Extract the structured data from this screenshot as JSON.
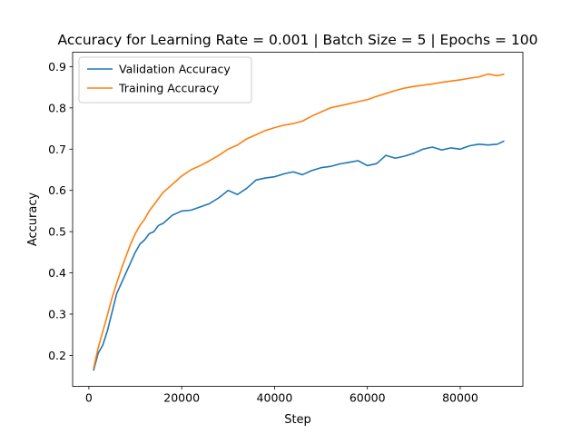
{
  "chart_data": {
    "type": "line",
    "title": "Accuracy for Learning Rate = 0.001 | Batch Size = 5 | Epochs = 100",
    "xlabel": "Step",
    "ylabel": "Accuracy",
    "xlim": [
      -3500,
      93500
    ],
    "ylim": [
      0.125,
      0.935
    ],
    "xticks": [
      0,
      20000,
      40000,
      60000,
      80000
    ],
    "yticks": [
      0.2,
      0.3,
      0.4,
      0.5,
      0.6,
      0.7,
      0.8,
      0.9
    ],
    "legend_position": "top-left",
    "grid": false,
    "x": [
      1000,
      2000,
      3000,
      4000,
      5000,
      6000,
      7000,
      8000,
      9000,
      10000,
      11000,
      12000,
      13000,
      14000,
      15000,
      16000,
      17000,
      18000,
      19000,
      20000,
      22000,
      24000,
      26000,
      28000,
      30000,
      32000,
      34000,
      36000,
      38000,
      40000,
      42000,
      44000,
      46000,
      48000,
      50000,
      52000,
      54000,
      56000,
      58000,
      60000,
      62000,
      64000,
      66000,
      68000,
      70000,
      72000,
      74000,
      76000,
      78000,
      80000,
      82000,
      84000,
      86000,
      88000,
      89500
    ],
    "series": [
      {
        "name": "Validation Accuracy",
        "color": "#1f77b4",
        "values": [
          0.163,
          0.205,
          0.225,
          0.26,
          0.305,
          0.35,
          0.375,
          0.4,
          0.425,
          0.45,
          0.47,
          0.48,
          0.495,
          0.5,
          0.515,
          0.52,
          0.53,
          0.54,
          0.545,
          0.55,
          0.552,
          0.56,
          0.568,
          0.582,
          0.6,
          0.59,
          0.605,
          0.625,
          0.63,
          0.633,
          0.64,
          0.645,
          0.638,
          0.648,
          0.655,
          0.658,
          0.664,
          0.668,
          0.672,
          0.66,
          0.665,
          0.685,
          0.678,
          0.683,
          0.69,
          0.7,
          0.705,
          0.698,
          0.703,
          0.7,
          0.708,
          0.712,
          0.71,
          0.712,
          0.72
        ]
      },
      {
        "name": "Training Accuracy",
        "color": "#ff7f0e",
        "values": [
          0.168,
          0.218,
          0.258,
          0.298,
          0.34,
          0.375,
          0.41,
          0.44,
          0.47,
          0.495,
          0.515,
          0.53,
          0.55,
          0.565,
          0.58,
          0.595,
          0.605,
          0.615,
          0.625,
          0.635,
          0.65,
          0.66,
          0.672,
          0.685,
          0.7,
          0.71,
          0.725,
          0.735,
          0.745,
          0.752,
          0.758,
          0.762,
          0.768,
          0.78,
          0.79,
          0.8,
          0.805,
          0.81,
          0.815,
          0.82,
          0.828,
          0.835,
          0.842,
          0.848,
          0.852,
          0.855,
          0.858,
          0.862,
          0.865,
          0.868,
          0.872,
          0.875,
          0.882,
          0.878,
          0.882
        ]
      }
    ]
  }
}
